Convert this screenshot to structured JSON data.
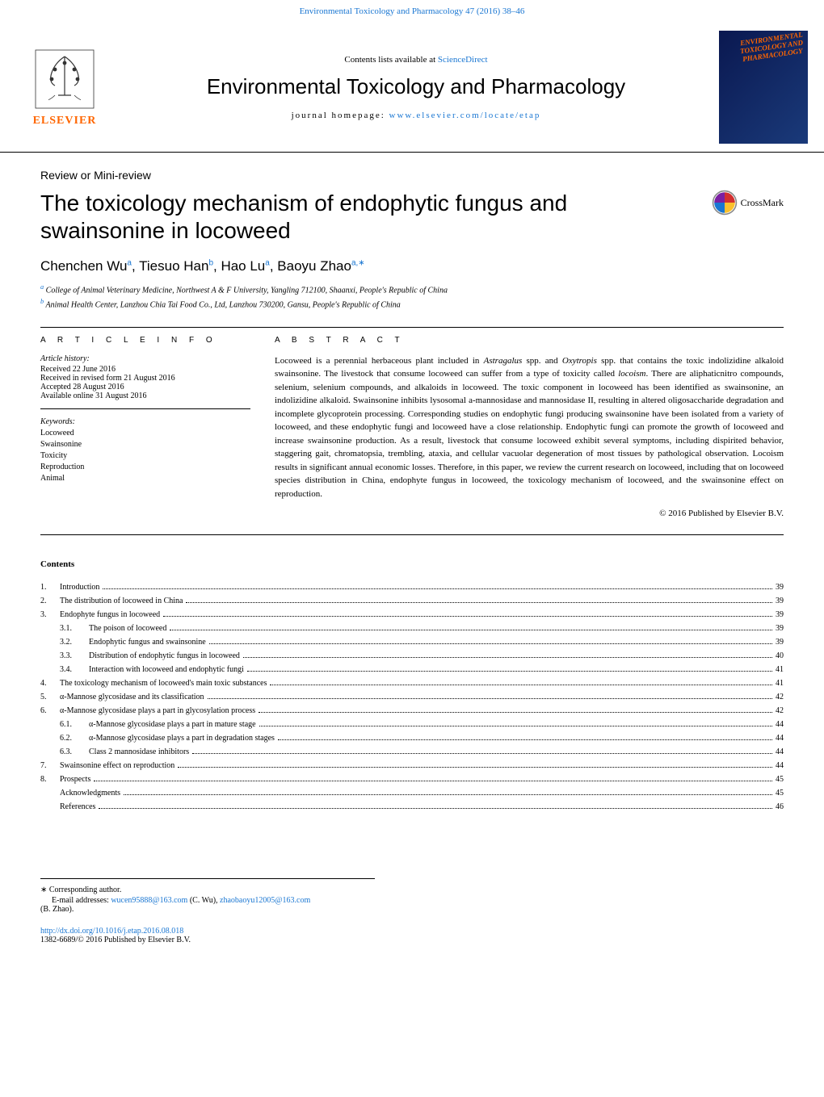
{
  "header": {
    "citation": "Environmental Toxicology and Pharmacology 47 (2016) 38–46",
    "contents_available": "Contents lists available at ",
    "sciencedirect": "ScienceDirect",
    "journal_title": "Environmental Toxicology and Pharmacology",
    "homepage_label": "journal homepage: ",
    "homepage_url": "www.elsevier.com/locate/etap",
    "elsevier_label": "ELSEVIER",
    "cover_line1": "ENVIRONMENTAL",
    "cover_line2": "TOXICOLOGY AND",
    "cover_line3": "PHARMACOLOGY",
    "crossmark": "CrossMark"
  },
  "article": {
    "type": "Review or Mini-review",
    "title": "The toxicology mechanism of endophytic fungus and swainsonine in locoweed",
    "authors_html": "Chenchen Wu<sup>a</sup>, Tiesuo Han<sup>b</sup>, Hao Lu<sup>a</sup>, Baoyu Zhao<sup>a,∗</sup>",
    "affiliation_a": "a College of Animal Veterinary Medicine, Northwest A & F University, Yangling 712100, Shaanxi, People's Republic of China",
    "affiliation_b": "b Animal Health Center, Lanzhou Chia Tai Food Co., Ltd, Lanzhou 730200, Gansu, People's Republic of China"
  },
  "info": {
    "heading": "A R T I C L E    I N F O",
    "history_label": "Article history:",
    "received": "Received 22 June 2016",
    "revised": "Received in revised form 21 August 2016",
    "accepted": "Accepted 28 August 2016",
    "online": "Available online 31 August 2016",
    "keywords_label": "Keywords:",
    "keywords": [
      "Locoweed",
      "Swainsonine",
      "Toxicity",
      "Reproduction",
      "Animal"
    ]
  },
  "abstract": {
    "heading": "A B S T R A C T",
    "text": "Locoweed is a perennial herbaceous plant included in Astragalus spp. and Oxytropis spp. that contains the toxic indolizidine alkaloid swainsonine. The livestock that consume locoweed can suffer from a type of toxicity called locoism. There are aliphaticnitro compounds, selenium, selenium compounds, and alkaloids in locoweed. The toxic component in locoweed has been identified as swainsonine, an indolizidine alkaloid. Swainsonine inhibits lysosomal a-mannosidase and mannosidase II, resulting in altered oligosaccharide degradation and incomplete glycoprotein processing. Corresponding studies on endophytic fungi producing swainsonine have been isolated from a variety of locoweed, and these endophytic fungi and locoweed have a close relationship. Endophytic fungi can promote the growth of locoweed and increase swainsonine production. As a result, livestock that consume locoweed exhibit several symptoms, including dispirited behavior, staggering gait, chromatopsia, trembling, ataxia, and cellular vacuolar degeneration of most tissues by pathological observation. Locoism results in significant annual economic losses. Therefore, in this paper, we review the current research on locoweed, including that on locoweed species distribution in China, endophyte fungus in locoweed, the toxicology mechanism of locoweed, and the swainsonine effect on reproduction.",
    "copyright": "© 2016 Published by Elsevier B.V."
  },
  "contents": {
    "heading": "Contents",
    "items": [
      {
        "num": "1.",
        "title": "Introduction",
        "page": "39",
        "level": 0
      },
      {
        "num": "2.",
        "title": "The distribution of locoweed in China",
        "page": "39",
        "level": 0
      },
      {
        "num": "3.",
        "title": "Endophyte fungus in locoweed",
        "page": "39",
        "level": 0
      },
      {
        "num": "3.1.",
        "title": "The poison of locoweed",
        "page": "39",
        "level": 1
      },
      {
        "num": "3.2.",
        "title": "Endophytic fungus and swainsonine",
        "page": "39",
        "level": 1
      },
      {
        "num": "3.3.",
        "title": "Distribution of endophytic fungus in locoweed",
        "page": "40",
        "level": 1
      },
      {
        "num": "3.4.",
        "title": "Interaction with locoweed and endophytic fungi",
        "page": "41",
        "level": 1
      },
      {
        "num": "4.",
        "title": "The toxicology mechanism of locoweed's main toxic substances",
        "page": "41",
        "level": 0
      },
      {
        "num": "5.",
        "title": "α-Mannose glycosidase and its classification",
        "page": "42",
        "level": 0
      },
      {
        "num": "6.",
        "title": "α-Mannose glycosidase plays a part in glycosylation process",
        "page": "42",
        "level": 0
      },
      {
        "num": "6.1.",
        "title": "α-Mannose glycosidase plays a part in mature stage",
        "page": "44",
        "level": 1
      },
      {
        "num": "6.2.",
        "title": "α-Mannose glycosidase plays a part in degradation stages",
        "page": "44",
        "level": 1
      },
      {
        "num": "6.3.",
        "title": "Class 2 mannosidase inhibitors",
        "page": "44",
        "level": 1
      },
      {
        "num": "7.",
        "title": "Swainsonine effect on reproduction",
        "page": "44",
        "level": 0
      },
      {
        "num": "8.",
        "title": "Prospects",
        "page": "45",
        "level": 0
      },
      {
        "num": "",
        "title": "Acknowledgments",
        "page": "45",
        "level": 2
      },
      {
        "num": "",
        "title": "References",
        "page": "46",
        "level": 2
      }
    ]
  },
  "footer": {
    "corresponding": "∗ Corresponding author.",
    "email_label": "E-mail addresses: ",
    "email1": "wucen95888@163.com",
    "email1_name": " (C. Wu), ",
    "email2": "zhaobaoyu12005@163.com",
    "email2_name": "(B. Zhao).",
    "doi": "http://dx.doi.org/10.1016/j.etap.2016.08.018",
    "issn": "1382-6689/© 2016 Published by Elsevier B.V."
  },
  "colors": {
    "link": "#1976d2",
    "elsevier_orange": "#ff6600",
    "cover_bg": "#0a1850"
  }
}
